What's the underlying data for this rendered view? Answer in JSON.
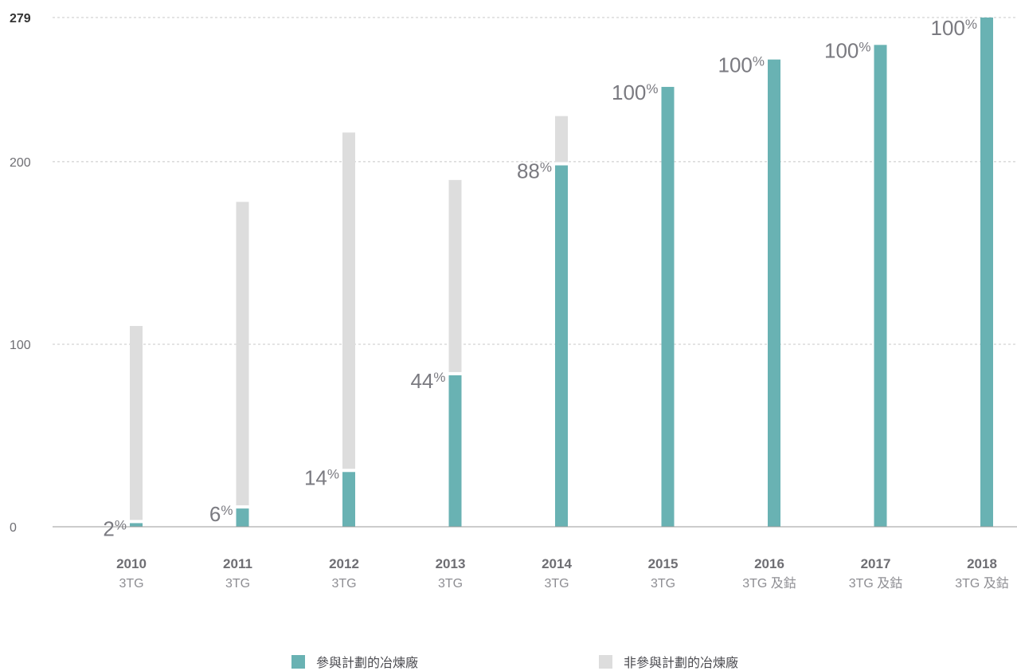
{
  "colors": {
    "participating": "#69b2b3",
    "non_participating": "#dddddd",
    "grid": "#c8c8c8",
    "axis": "#999999"
  },
  "chart_data": {
    "type": "bar",
    "stacked": true,
    "categories": [
      "2010",
      "2011",
      "2012",
      "2013",
      "2014",
      "2015",
      "2016",
      "2017",
      "2018"
    ],
    "category_sublabels": [
      "3TG",
      "3TG",
      "3TG",
      "3TG",
      "3TG",
      "3TG",
      "3TG 及鈷",
      "3TG 及鈷",
      "3TG 及鈷"
    ],
    "series": [
      {
        "name": "參與計劃的冶煉廠",
        "values": [
          2,
          10,
          30,
          83,
          198,
          241,
          256,
          264,
          279
        ]
      },
      {
        "name": "非參與計劃的冶煉廠",
        "values": [
          108,
          168,
          186,
          107,
          27,
          0,
          0,
          0,
          0
        ]
      }
    ],
    "data_labels": [
      {
        "value": "2",
        "unit": "%"
      },
      {
        "value": "6",
        "unit": "%"
      },
      {
        "value": "14",
        "unit": "%"
      },
      {
        "value": "44",
        "unit": "%"
      },
      {
        "value": "88",
        "unit": "%"
      },
      {
        "value": "100",
        "unit": "%"
      },
      {
        "value": "100",
        "unit": "%"
      },
      {
        "value": "100",
        "unit": "%"
      },
      {
        "value": "100",
        "unit": "%"
      }
    ],
    "y_ticks": [
      "0",
      "100",
      "200",
      "279"
    ],
    "ylim": [
      0,
      279
    ],
    "grid": true,
    "legend_position": "bottom-center"
  }
}
